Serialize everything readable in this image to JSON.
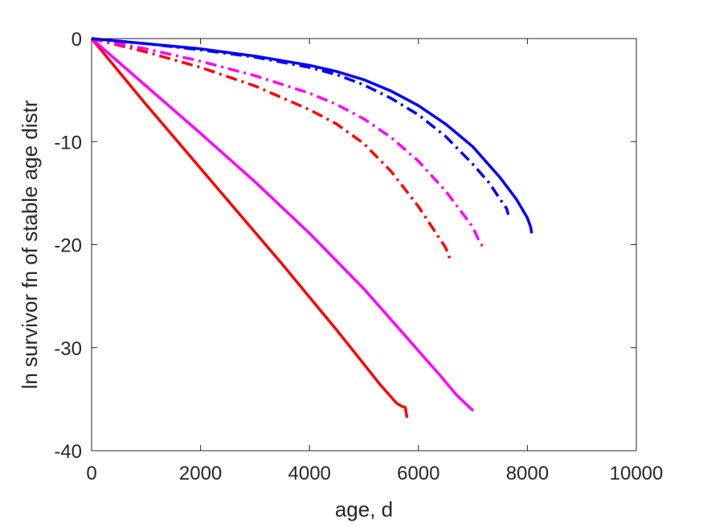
{
  "chart_data": {
    "type": "line",
    "title": "",
    "xlabel": "age, d",
    "ylabel": "ln survivor fn of stable age distr",
    "xlim": [
      0,
      10000
    ],
    "ylim": [
      -40,
      0
    ],
    "x_ticks": [
      0,
      2000,
      4000,
      6000,
      8000,
      10000
    ],
    "y_ticks": [
      0,
      -10,
      -20,
      -30,
      -40
    ],
    "x_tick_labels": [
      "0",
      "2000",
      "4000",
      "6000",
      "8000",
      "10000"
    ],
    "y_tick_labels": [
      "0",
      "-10",
      "-20",
      "-30",
      "-40"
    ],
    "grid": false,
    "legend": "none",
    "series": [
      {
        "color": "#ff0000",
        "style": "solid",
        "x": [
          0,
          500,
          1000,
          1500,
          2000,
          2500,
          3000,
          3500,
          4000,
          4500,
          5000,
          5300,
          5600,
          5700,
          5760,
          5790
        ],
        "y": [
          0,
          -3.2,
          -6.4,
          -9.5,
          -12.6,
          -15.7,
          -18.8,
          -21.9,
          -25.1,
          -28.3,
          -31.6,
          -33.6,
          -35.4,
          -35.7,
          -35.8,
          -36.8
        ]
      },
      {
        "color": "#ff00ff",
        "style": "solid",
        "x": [
          0,
          1000,
          2000,
          3000,
          4000,
          5000,
          5500,
          6000,
          6400,
          6700,
          6900,
          6980,
          7010
        ],
        "y": [
          0,
          -4.6,
          -9.2,
          -13.9,
          -18.9,
          -24.3,
          -27.3,
          -30.3,
          -32.7,
          -34.6,
          -35.6,
          -36.0,
          -36.1
        ]
      },
      {
        "color": "#ff0000",
        "style": "dashdot",
        "x": [
          0,
          1000,
          2000,
          3000,
          4000,
          4500,
          5000,
          5500,
          6000,
          6300,
          6500,
          6580
        ],
        "y": [
          0,
          -1.3,
          -2.8,
          -4.6,
          -6.9,
          -8.3,
          -10.2,
          -12.9,
          -16.3,
          -18.7,
          -20.3,
          -21.4
        ]
      },
      {
        "color": "#ff00ff",
        "style": "dashdot",
        "x": [
          0,
          1000,
          2000,
          3000,
          4000,
          4500,
          5000,
          5500,
          6000,
          6500,
          6800,
          7000,
          7100,
          7160,
          7180
        ],
        "y": [
          0,
          -1.0,
          -2.2,
          -3.6,
          -5.3,
          -6.4,
          -7.8,
          -9.6,
          -11.9,
          -14.8,
          -16.9,
          -18.3,
          -19.5,
          -20.0,
          -20.6
        ]
      },
      {
        "color": "#0000ff",
        "style": "dashdot",
        "x": [
          0,
          1000,
          2000,
          3000,
          4000,
          4500,
          5000,
          5500,
          6000,
          6500,
          7000,
          7300,
          7500,
          7620,
          7650
        ],
        "y": [
          0,
          -0.5,
          -1.1,
          -1.8,
          -2.8,
          -3.5,
          -4.5,
          -5.8,
          -7.4,
          -9.5,
          -12.2,
          -14.0,
          -15.6,
          -16.5,
          -17.1
        ]
      },
      {
        "color": "#0000ff",
        "style": "solid",
        "x": [
          0,
          1000,
          2000,
          3000,
          4000,
          4500,
          5000,
          5500,
          6000,
          6500,
          7000,
          7500,
          7800,
          8000,
          8060,
          8080
        ],
        "y": [
          0,
          -0.5,
          -1.0,
          -1.7,
          -2.6,
          -3.2,
          -4.0,
          -5.1,
          -6.5,
          -8.3,
          -10.5,
          -13.5,
          -15.6,
          -17.4,
          -18.3,
          -18.9
        ]
      }
    ]
  }
}
